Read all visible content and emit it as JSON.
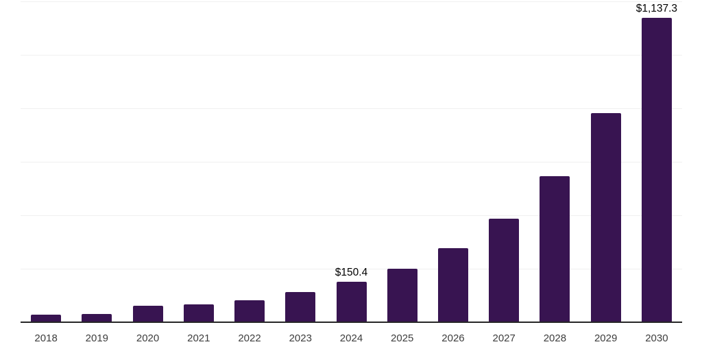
{
  "chart_data": {
    "type": "bar",
    "title": "",
    "xlabel": "",
    "ylabel": "",
    "categories": [
      "2018",
      "2019",
      "2020",
      "2021",
      "2022",
      "2023",
      "2024",
      "2025",
      "2026",
      "2027",
      "2028",
      "2029",
      "2030"
    ],
    "values": [
      28,
      31,
      61,
      67,
      82,
      113,
      150.4,
      200,
      277,
      387,
      546,
      782,
      1137.3
    ],
    "data_labels": [
      {
        "category": "2024",
        "text": "$150.4"
      },
      {
        "category": "2030",
        "text": "$1,137.3"
      }
    ],
    "ylim": [
      0,
      1200
    ],
    "grid": true,
    "grid_step": 200,
    "legend": false,
    "colors": {
      "bar": "#381451",
      "gridline": "#f0f0f0",
      "axis_line": "#262626",
      "tick_label": "#3d3d3d",
      "data_label": "#000000",
      "background": "#ffffff"
    }
  }
}
